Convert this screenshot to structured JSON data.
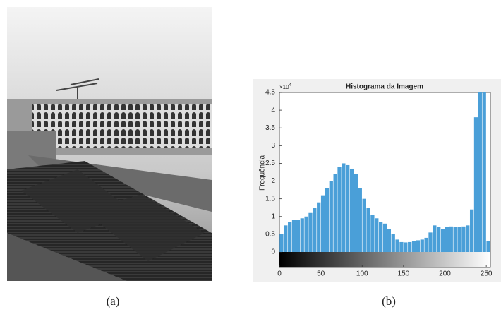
{
  "figure": {
    "caption_a": "(a)",
    "caption_b": "(b)"
  },
  "chart_data": {
    "type": "histogram",
    "title": "Histograma da Imagem",
    "y_label": "Frequência",
    "y_multiplier": "×10",
    "y_multiplier_exp": "4",
    "color": "#4a9fd8",
    "bins": [
      0,
      5,
      10,
      15,
      20,
      25,
      30,
      35,
      40,
      45,
      50,
      55,
      60,
      65,
      70,
      75,
      80,
      85,
      90,
      95,
      100,
      105,
      110,
      115,
      120,
      125,
      130,
      135,
      140,
      145,
      150,
      155,
      160,
      165,
      170,
      175,
      180,
      185,
      190,
      195,
      200,
      205,
      210,
      215,
      220,
      225,
      230,
      235,
      240,
      245,
      250,
      255
    ],
    "values": [
      0.5,
      0.75,
      0.85,
      0.9,
      0.9,
      0.95,
      1.0,
      1.1,
      1.25,
      1.4,
      1.6,
      1.8,
      2.0,
      2.2,
      2.4,
      2.5,
      2.45,
      2.35,
      2.2,
      1.8,
      1.5,
      1.25,
      1.05,
      0.95,
      0.85,
      0.8,
      0.65,
      0.5,
      0.35,
      0.28,
      0.27,
      0.28,
      0.3,
      0.33,
      0.35,
      0.4,
      0.55,
      0.75,
      0.7,
      0.65,
      0.7,
      0.72,
      0.7,
      0.7,
      0.72,
      0.75,
      1.2,
      3.8,
      4.5,
      4.5,
      0.3
    ],
    "xlim": [
      0,
      255
    ],
    "xticks": [
      0,
      50,
      100,
      150,
      200,
      250
    ],
    "ylim": [
      0,
      4.5
    ],
    "yticks": [
      0,
      0.5,
      1,
      1.5,
      2,
      2.5,
      3,
      3.5,
      4,
      4.5
    ]
  }
}
